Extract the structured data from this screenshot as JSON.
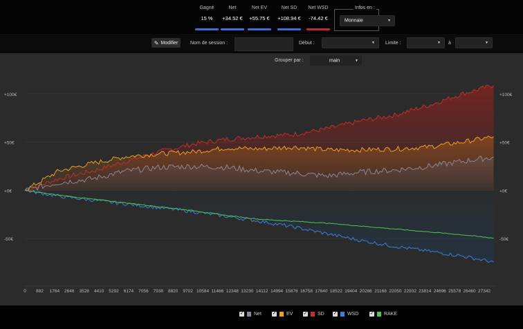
{
  "header": {
    "stats": [
      {
        "label": "Gagné",
        "value": "15 %",
        "color": "#3b6fd8"
      },
      {
        "label": "Net",
        "value": "+34.52 €",
        "color": "#3b6fd8"
      },
      {
        "label": "Net EV",
        "value": "+55.75 €",
        "color": "#3b6fd8"
      },
      {
        "label": "Net SD",
        "value": "+108.94 €",
        "color": "#3b6fd8"
      },
      {
        "label": "Net WSD",
        "value": "-74.42 €",
        "color": "#c0282d"
      }
    ],
    "infos_label": "Infos en :",
    "infos_value": "Monnaie"
  },
  "toolbar": {
    "modify_label": "Modifier",
    "session_name_label": "Nom de session :",
    "session_name_value": "",
    "start_label": "Début :",
    "start_value": "",
    "limit_label": "Limite :",
    "limit_value": "",
    "to_label": "à",
    "to_value": "",
    "group_label": "Grouper par :",
    "group_value": "main"
  },
  "chart_data": {
    "type": "line",
    "xlim": [
      0,
      28000
    ],
    "ylim": [
      -95,
      120
    ],
    "x_ticks": [
      0,
      882,
      1764,
      2646,
      3528,
      4410,
      5292,
      6174,
      7056,
      7938,
      8820,
      9702,
      10584,
      11466,
      12348,
      13230,
      14112,
      14994,
      15876,
      16758,
      17640,
      18522,
      19404,
      20286,
      21168,
      22050,
      22932,
      23814,
      24696,
      25578,
      26460,
      27342
    ],
    "y_ticks": [
      {
        "value": 100,
        "label": "+100€"
      },
      {
        "value": 50,
        "label": "+50€"
      },
      {
        "value": 0,
        "label": "+0€"
      },
      {
        "value": -50,
        "label": "-50€"
      }
    ],
    "series": [
      {
        "name": "Net",
        "color": "#8d8896",
        "x": [
          0,
          2000,
          4000,
          6000,
          8000,
          10000,
          12000,
          14000,
          16000,
          18000,
          20000,
          22000,
          24000,
          26000,
          27900
        ],
        "y": [
          0,
          8,
          12,
          20,
          24,
          25,
          24,
          20,
          18,
          15,
          19,
          21,
          25,
          30,
          34.5
        ]
      },
      {
        "name": "EV",
        "color": "#f0a020",
        "x": [
          0,
          2000,
          4000,
          6000,
          8000,
          10000,
          12000,
          14000,
          16000,
          18000,
          20000,
          22000,
          24000,
          26000,
          27900
        ],
        "y": [
          0,
          20,
          28,
          35,
          38,
          40,
          44,
          43,
          45,
          42,
          42,
          43,
          45,
          50,
          55.7
        ]
      },
      {
        "name": "SD",
        "color": "#c0302a",
        "x": [
          0,
          2000,
          4000,
          6000,
          8000,
          10000,
          12000,
          14000,
          16000,
          18000,
          20000,
          22000,
          24000,
          26000,
          27900
        ],
        "y": [
          0,
          12,
          20,
          30,
          40,
          48,
          53,
          56,
          58,
          64,
          72,
          78,
          88,
          100,
          108.9
        ]
      },
      {
        "name": "WSD",
        "color": "#3a7fe0",
        "x": [
          0,
          2000,
          4000,
          6000,
          8000,
          10000,
          12000,
          14000,
          16000,
          18000,
          20000,
          22000,
          24000,
          26000,
          27900
        ],
        "y": [
          0,
          -6,
          -10,
          -14,
          -18,
          -22,
          -27,
          -32,
          -38,
          -45,
          -52,
          -58,
          -63,
          -68,
          -74.4
        ]
      },
      {
        "name": "RAKE",
        "color": "#4ec84a",
        "x": [
          0,
          2000,
          4000,
          6000,
          8000,
          10000,
          12000,
          14000,
          16000,
          18000,
          20000,
          22000,
          24000,
          26000,
          27900
        ],
        "y": [
          0,
          -5,
          -9,
          -13,
          -17,
          -21,
          -26,
          -30,
          -32,
          -34,
          -37,
          -40,
          -43,
          -46,
          -49.5
        ]
      }
    ]
  },
  "legend": [
    {
      "label": "Net",
      "color": "#8d8896"
    },
    {
      "label": "EV",
      "color": "#f0a020"
    },
    {
      "label": "SD",
      "color": "#c0302a"
    },
    {
      "label": "WSD",
      "color": "#3a7fe0"
    },
    {
      "label": "RAKE",
      "color": "#4ec84a"
    }
  ]
}
